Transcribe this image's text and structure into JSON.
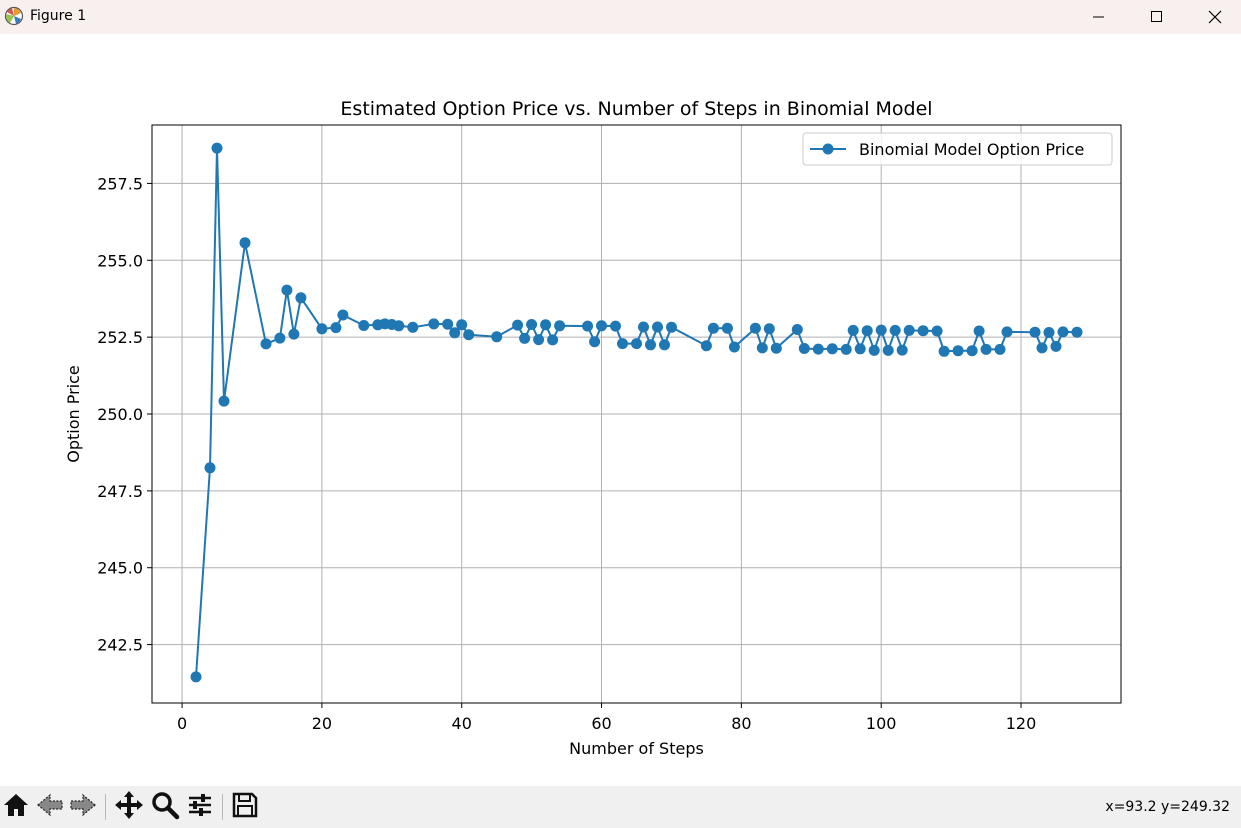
{
  "window": {
    "title": "Figure 1",
    "icon": "matplotlib-icon",
    "controls": [
      "minimize-icon",
      "maximize-icon",
      "close-icon"
    ]
  },
  "toolbar": {
    "buttons": [
      "home-icon",
      "back-icon",
      "forward-icon",
      "pan-icon",
      "zoom-icon",
      "configure-subplots-icon",
      "save-icon"
    ],
    "coords": "x=93.2 y=249.32"
  },
  "chart_data": {
    "type": "line",
    "title": "Estimated Option Price vs. Number of Steps in Binomial Model",
    "xlabel": "Number of Steps",
    "ylabel": "Option Price",
    "xlim": [
      -4.3,
      134.3
    ],
    "ylim": [
      240.6,
      259.4
    ],
    "xticks": [
      0,
      20,
      40,
      60,
      80,
      100,
      120
    ],
    "yticks": [
      242.5,
      245.0,
      247.5,
      250.0,
      252.5,
      255.0,
      257.5
    ],
    "ytick_labels": [
      "242.5",
      "245.0",
      "247.5",
      "250.0",
      "252.5",
      "255.0",
      "257.5"
    ],
    "grid": true,
    "legend": "top-right",
    "color": "#1f77b4",
    "series": [
      {
        "name": "Binomial Model Option Price",
        "x": [
          2,
          4,
          5,
          6,
          9,
          12,
          14,
          15,
          16,
          17,
          20,
          22,
          23,
          26,
          28,
          29,
          30,
          31,
          33,
          36,
          38,
          39,
          40,
          41,
          45,
          48,
          49,
          50,
          51,
          52,
          53,
          54,
          58,
          59,
          60,
          62,
          63,
          65,
          66,
          67,
          68,
          69,
          70,
          75,
          76,
          78,
          79,
          82,
          83,
          84,
          85,
          88,
          89,
          91,
          93,
          95,
          96,
          97,
          98,
          99,
          100,
          101,
          102,
          103,
          104,
          106,
          108,
          109,
          111,
          113,
          114,
          115,
          117,
          118,
          122,
          123,
          124,
          125,
          126,
          128
        ],
        "y": [
          241.45,
          248.25,
          258.65,
          250.42,
          255.57,
          252.28,
          252.47,
          254.03,
          252.6,
          253.78,
          252.77,
          252.81,
          253.22,
          252.88,
          252.9,
          252.93,
          252.91,
          252.87,
          252.82,
          252.93,
          252.92,
          252.64,
          252.9,
          252.58,
          252.51,
          252.89,
          252.46,
          252.91,
          252.42,
          252.9,
          252.41,
          252.87,
          252.86,
          252.35,
          252.87,
          252.86,
          252.29,
          252.29,
          252.83,
          252.25,
          252.83,
          252.25,
          252.82,
          252.22,
          252.79,
          252.79,
          252.18,
          252.79,
          252.15,
          252.77,
          252.14,
          252.75,
          252.13,
          252.11,
          252.12,
          252.1,
          252.72,
          252.12,
          252.71,
          252.07,
          252.73,
          252.07,
          252.72,
          252.08,
          252.72,
          252.71,
          252.7,
          252.04,
          252.06,
          252.06,
          252.7,
          252.1,
          252.1,
          252.67,
          252.66,
          252.15,
          252.65,
          252.2,
          252.67,
          252.66
        ]
      }
    ]
  }
}
